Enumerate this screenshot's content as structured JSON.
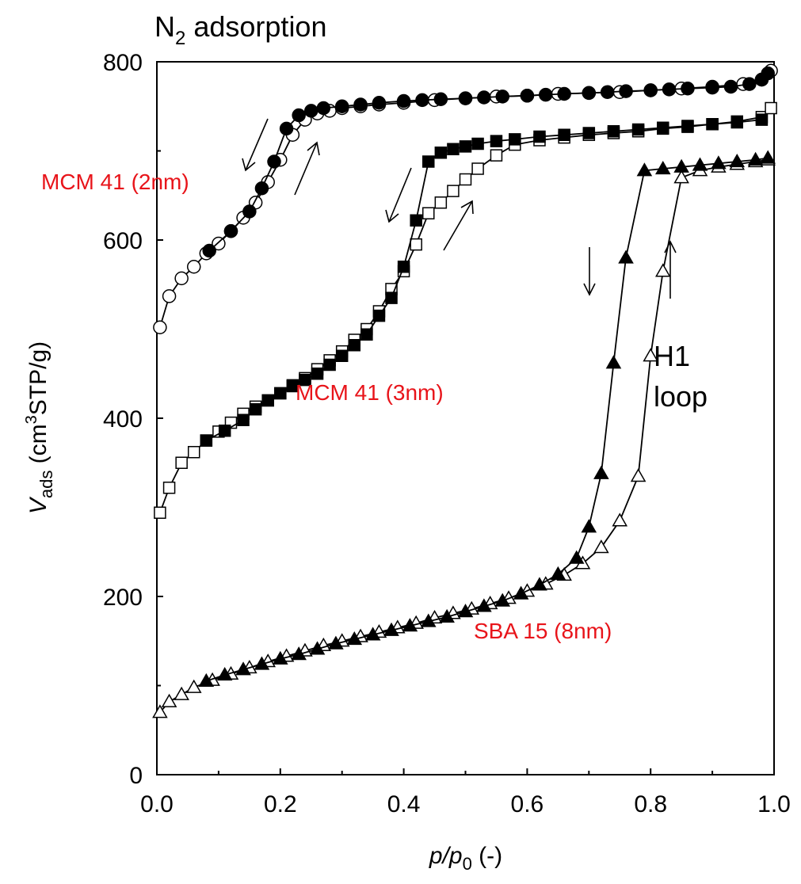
{
  "chart_data": {
    "type": "line",
    "title_main": "N",
    "title_sub": "2",
    "title_rest": " adsorption",
    "xlabel_italic": "p/p",
    "xlabel_sub": "0",
    "xlabel_rest": " (-)",
    "ylabel_italic": "V",
    "ylabel_sub": "ads",
    "ylabel_mid": " (cm",
    "ylabel_sup": "3",
    "ylabel_rest": "STP/g)",
    "xlim": [
      0,
      1
    ],
    "ylim": [
      0,
      800
    ],
    "x_ticks": [
      "0.0",
      "0.2",
      "0.4",
      "0.6",
      "0.8",
      "1.0"
    ],
    "y_ticks": [
      "0",
      "200",
      "400",
      "600",
      "800"
    ],
    "annotations": {
      "mcm2": "MCM 41 (2nm)",
      "mcm3": "MCM 41 (3nm)",
      "sba": "SBA 15 (8nm)",
      "h1_line1": "H1",
      "h1_line2": "loop"
    },
    "series": [
      {
        "marker": "circle",
        "fill": "open",
        "x": [
          0.005,
          0.02,
          0.04,
          0.06,
          0.08,
          0.1,
          0.12,
          0.14,
          0.16,
          0.18,
          0.2,
          0.22,
          0.24,
          0.26,
          0.28,
          0.3,
          0.33,
          0.36,
          0.4,
          0.45,
          0.5,
          0.55,
          0.6,
          0.65,
          0.7,
          0.75,
          0.8,
          0.85,
          0.9,
          0.95,
          0.98,
          0.995
        ],
        "y": [
          502,
          537,
          557,
          570,
          585,
          596,
          610,
          625,
          642,
          665,
          690,
          718,
          735,
          742,
          745,
          748,
          750,
          752,
          754,
          757,
          759,
          761,
          762,
          764,
          765,
          766,
          768,
          770,
          772,
          775,
          780,
          790
        ]
      },
      {
        "marker": "circle",
        "fill": "filled",
        "x": [
          0.085,
          0.12,
          0.15,
          0.17,
          0.19,
          0.21,
          0.23,
          0.25,
          0.27,
          0.3,
          0.33,
          0.36,
          0.4,
          0.43,
          0.46,
          0.5,
          0.53,
          0.56,
          0.6,
          0.63,
          0.66,
          0.7,
          0.73,
          0.76,
          0.8,
          0.83,
          0.86,
          0.9,
          0.93,
          0.96,
          0.98,
          0.99
        ],
        "y": [
          588,
          610,
          632,
          658,
          688,
          725,
          740,
          745,
          748,
          750,
          752,
          754,
          756,
          757,
          758,
          759,
          760,
          761,
          762,
          763,
          764,
          765,
          766,
          767,
          768,
          769,
          770,
          771,
          772,
          775,
          780,
          787
        ]
      },
      {
        "marker": "square",
        "fill": "open",
        "x": [
          0.005,
          0.02,
          0.04,
          0.06,
          0.08,
          0.1,
          0.12,
          0.14,
          0.16,
          0.18,
          0.2,
          0.22,
          0.24,
          0.26,
          0.28,
          0.3,
          0.32,
          0.34,
          0.36,
          0.38,
          0.4,
          0.42,
          0.44,
          0.46,
          0.48,
          0.5,
          0.52,
          0.55,
          0.58,
          0.62,
          0.66,
          0.7,
          0.74,
          0.78,
          0.82,
          0.86,
          0.9,
          0.94,
          0.98,
          0.995
        ],
        "y": [
          294,
          322,
          350,
          362,
          375,
          385,
          395,
          405,
          413,
          420,
          428,
          437,
          445,
          455,
          465,
          475,
          488,
          500,
          520,
          545,
          565,
          595,
          630,
          642,
          655,
          668,
          680,
          695,
          707,
          712,
          715,
          718,
          720,
          722,
          725,
          727,
          730,
          733,
          738,
          748
        ]
      },
      {
        "marker": "square",
        "fill": "filled",
        "x": [
          0.08,
          0.11,
          0.14,
          0.16,
          0.18,
          0.2,
          0.22,
          0.24,
          0.26,
          0.28,
          0.3,
          0.32,
          0.34,
          0.36,
          0.38,
          0.4,
          0.42,
          0.44,
          0.46,
          0.48,
          0.5,
          0.52,
          0.55,
          0.58,
          0.62,
          0.66,
          0.7,
          0.74,
          0.78,
          0.82,
          0.86,
          0.9,
          0.94,
          0.98
        ],
        "y": [
          375,
          386,
          398,
          410,
          420,
          428,
          436,
          443,
          450,
          460,
          470,
          482,
          494,
          515,
          535,
          570,
          622,
          688,
          698,
          702,
          705,
          708,
          711,
          713,
          716,
          718,
          720,
          722,
          724,
          726,
          728,
          730,
          732,
          735
        ]
      },
      {
        "marker": "triangle",
        "fill": "open",
        "x": [
          0.005,
          0.02,
          0.04,
          0.06,
          0.09,
          0.12,
          0.15,
          0.18,
          0.21,
          0.24,
          0.27,
          0.3,
          0.33,
          0.36,
          0.39,
          0.42,
          0.45,
          0.48,
          0.51,
          0.54,
          0.57,
          0.6,
          0.63,
          0.66,
          0.69,
          0.72,
          0.75,
          0.78,
          0.8,
          0.82,
          0.85,
          0.88,
          0.91,
          0.94,
          0.97,
          0.99
        ],
        "y": [
          70,
          82,
          90,
          98,
          106,
          113,
          120,
          127,
          133,
          139,
          145,
          150,
          155,
          160,
          165,
          170,
          176,
          181,
          186,
          192,
          198,
          206,
          214,
          224,
          237,
          255,
          285,
          335,
          470,
          565,
          670,
          678,
          682,
          685,
          688,
          690
        ]
      },
      {
        "marker": "triangle",
        "fill": "filled",
        "x": [
          0.08,
          0.11,
          0.14,
          0.17,
          0.2,
          0.23,
          0.26,
          0.29,
          0.32,
          0.35,
          0.38,
          0.41,
          0.44,
          0.47,
          0.5,
          0.53,
          0.56,
          0.59,
          0.62,
          0.65,
          0.68,
          0.7,
          0.72,
          0.74,
          0.76,
          0.79,
          0.82,
          0.85,
          0.88,
          0.91,
          0.94,
          0.97,
          0.99
        ],
        "y": [
          105,
          112,
          118,
          124,
          130,
          135,
          141,
          147,
          152,
          157,
          162,
          167,
          172,
          177,
          183,
          189,
          195,
          203,
          213,
          225,
          243,
          278,
          338,
          462,
          580,
          678,
          680,
          682,
          684,
          686,
          688,
          690,
          692
        ]
      }
    ]
  }
}
